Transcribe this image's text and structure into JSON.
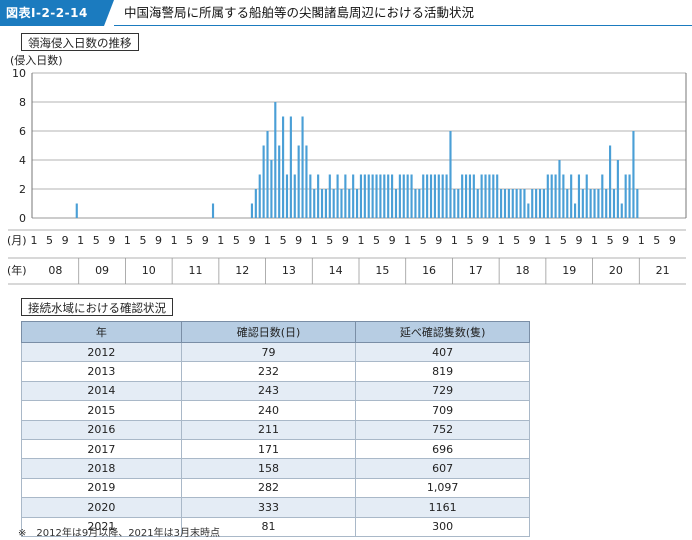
{
  "header": {
    "figure_id": "図表Ⅰ-2-2-14",
    "title": "中国海警局に所属する船舶等の尖閣諸島周辺における活動状況"
  },
  "chart_section_title": "領海侵入日数の推移",
  "table_section_title": "接続水域における確認状況",
  "chart_data": {
    "type": "bar",
    "ylabel": "(侵入日数)",
    "ylim": [
      0,
      10
    ],
    "yticks": [
      0,
      2,
      4,
      6,
      8,
      10
    ],
    "grid": true,
    "month_axis_label": "(月)",
    "year_axis_label": "(年)",
    "month_tick_labels": [
      "1",
      "5",
      "9"
    ],
    "year_labels": [
      "08",
      "09",
      "10",
      "11",
      "12",
      "13",
      "14",
      "15",
      "16",
      "17",
      "18",
      "19",
      "20",
      "21"
    ],
    "x_start": "2008-01",
    "x_end": "2021-12",
    "bar_color": "#4a9fd6",
    "values": [
      0,
      0,
      0,
      0,
      0,
      0,
      0,
      0,
      0,
      0,
      0,
      1,
      0,
      0,
      0,
      0,
      0,
      0,
      0,
      0,
      0,
      0,
      0,
      0,
      0,
      0,
      0,
      0,
      0,
      0,
      0,
      0,
      0,
      0,
      0,
      0,
      0,
      0,
      0,
      0,
      0,
      0,
      0,
      0,
      0,
      0,
      1,
      0,
      0,
      0,
      0,
      0,
      0,
      0,
      0,
      0,
      1,
      2,
      3,
      5,
      6,
      4,
      8,
      5,
      7,
      3,
      7,
      3,
      5,
      7,
      5,
      3,
      2,
      3,
      2,
      2,
      3,
      2,
      3,
      2,
      3,
      2,
      3,
      2,
      3,
      3,
      3,
      3,
      3,
      3,
      3,
      3,
      3,
      2,
      3,
      3,
      3,
      3,
      2,
      2,
      3,
      3,
      3,
      3,
      3,
      3,
      3,
      6,
      2,
      2,
      3,
      3,
      3,
      3,
      2,
      3,
      3,
      3,
      3,
      3,
      2,
      2,
      2,
      2,
      2,
      2,
      2,
      1,
      2,
      2,
      2,
      2,
      3,
      3,
      3,
      4,
      3,
      2,
      3,
      1,
      3,
      2,
      3,
      2,
      2,
      2,
      3,
      2,
      5,
      2,
      4,
      1,
      3,
      3,
      6,
      2,
      0,
      0,
      0,
      0,
      0,
      0,
      0,
      0,
      0,
      0,
      0,
      0
    ]
  },
  "table": {
    "headers": [
      "年",
      "確認日数(日)",
      "延べ確認隻数(隻)"
    ],
    "rows": [
      [
        "2012",
        "79",
        "407"
      ],
      [
        "2013",
        "232",
        "819"
      ],
      [
        "2014",
        "243",
        "729"
      ],
      [
        "2015",
        "240",
        "709"
      ],
      [
        "2016",
        "211",
        "752"
      ],
      [
        "2017",
        "171",
        "696"
      ],
      [
        "2018",
        "158",
        "607"
      ],
      [
        "2019",
        "282",
        "1,097"
      ],
      [
        "2020",
        "333",
        "1161"
      ],
      [
        "2021",
        "81",
        "300"
      ]
    ]
  },
  "footnote": "※　2012年は9月以降、2021年は3月末時点"
}
